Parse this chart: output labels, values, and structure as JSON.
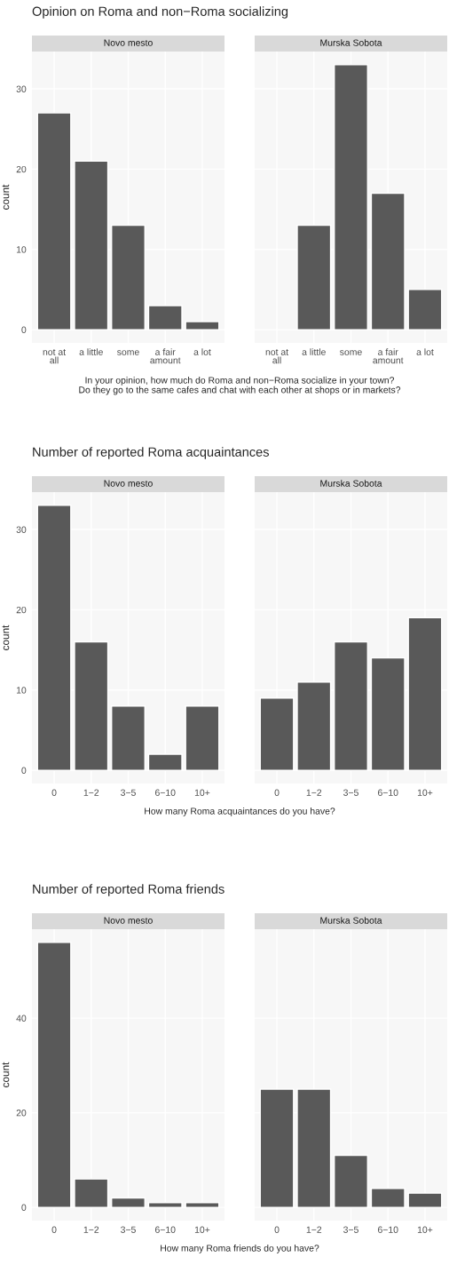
{
  "chart_data": [
    {
      "type": "bar",
      "title": "Novo mesto",
      "annotations": [
        "Opinion on Roma and non−Roma socializing"
      ],
      "xlabel": "In your opinion, how much do Roma and non−Roma socialize in your town?\nDo they go to the same cafes and chat with each other at shops or in markets?",
      "ylabel": "count",
      "categories": [
        "not at\nall",
        "a little",
        "some",
        "a fair\namount",
        "a lot"
      ],
      "values": [
        27,
        21,
        13,
        3,
        1
      ],
      "color": "#595959",
      "ylim": [
        -1.65,
        34.65
      ],
      "yticks": [
        0,
        10,
        20,
        30
      ],
      "grid": true,
      "legend": false
    },
    {
      "type": "bar",
      "title": "Murska Sobota",
      "categories": [
        "not at\nall",
        "a little",
        "some",
        "a fair\namount",
        "a lot"
      ],
      "values": [
        null,
        13,
        33,
        17,
        5
      ],
      "color": "#595959",
      "ylim": [
        -1.65,
        34.65
      ],
      "yticks": [
        0,
        10,
        20,
        30
      ],
      "grid": true,
      "legend": false,
      "tick_labels": "x"
    },
    {
      "type": "bar",
      "title": "Novo mesto",
      "annotations": [
        "Number of reported Roma acquaintances"
      ],
      "xlabel": "How many Roma acquaintances do you have?",
      "ylabel": "count",
      "categories": [
        "0",
        "1−2",
        "3−5",
        "6−10",
        "10+"
      ],
      "values": [
        33,
        16,
        8,
        2,
        8
      ],
      "color": "#595959",
      "ylim": [
        -1.65,
        34.65
      ],
      "yticks": [
        0,
        10,
        20,
        30
      ],
      "grid": true,
      "legend": false
    },
    {
      "type": "bar",
      "title": "Murska Sobota",
      "categories": [
        "0",
        "1−2",
        "3−5",
        "6−10",
        "10+"
      ],
      "values": [
        9,
        11,
        16,
        14,
        19
      ],
      "color": "#595959",
      "ylim": [
        -1.65,
        34.65
      ],
      "yticks": [
        0,
        10,
        20,
        30
      ],
      "grid": true,
      "legend": false,
      "tick_labels": "x"
    },
    {
      "type": "bar",
      "title": "Novo mesto",
      "annotations": [
        "Number of reported Roma friends"
      ],
      "xlabel": "How many Roma friends do you have?",
      "ylabel": "count",
      "categories": [
        "0",
        "1−2",
        "3−5",
        "6−10",
        "10+"
      ],
      "values": [
        56,
        6,
        2,
        1,
        1
      ],
      "color": "#595959",
      "ylim": [
        -2.8,
        58.8
      ],
      "yticks": [
        0,
        20,
        40
      ],
      "grid": true,
      "legend": false
    },
    {
      "type": "bar",
      "title": "Murska Sobota",
      "categories": [
        "0",
        "1−2",
        "3−5",
        "6−10",
        "10+"
      ],
      "values": [
        25,
        25,
        11,
        4,
        3
      ],
      "color": "#595959",
      "ylim": [
        -2.8,
        58.8
      ],
      "yticks": [
        0,
        20,
        40
      ],
      "grid": true,
      "legend": false,
      "tick_labels": "x"
    }
  ]
}
